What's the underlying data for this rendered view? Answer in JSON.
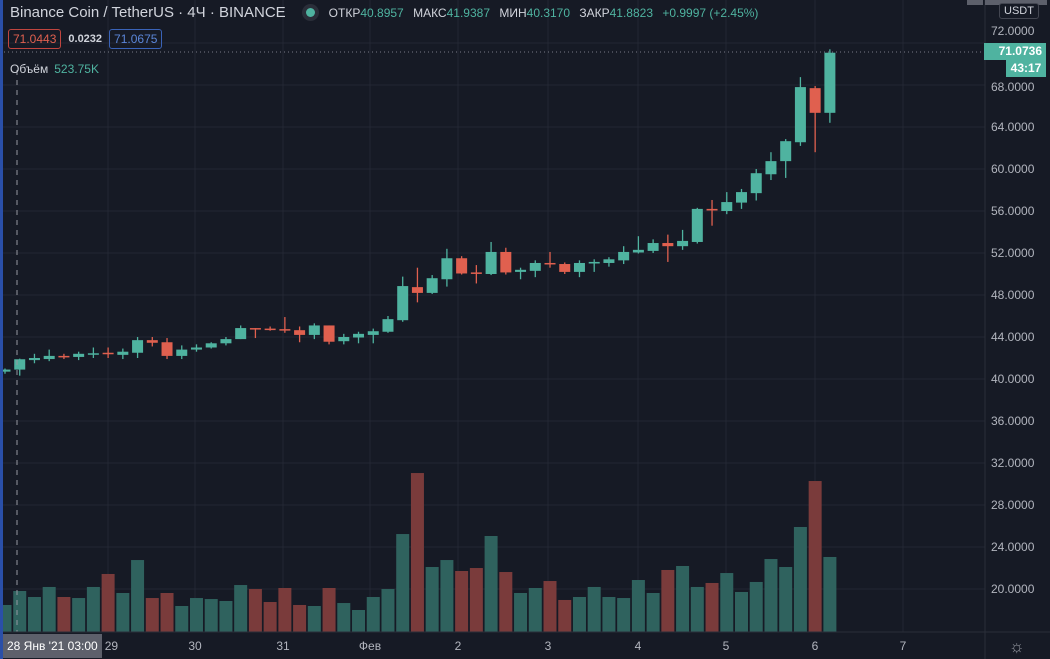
{
  "header": {
    "symbol": "Binance Coin / TetherUS · 4Ч · BINANCE",
    "open_label": "ОТКР",
    "open": "40.8957",
    "high_label": "МАКС",
    "high": "41.9387",
    "low_label": "МИН",
    "low": "40.3170",
    "close_label": "ЗАКР",
    "close": "41.8823",
    "change": "+0.9997 (+2.45%)",
    "bid": "71.0443",
    "spread": "0.0232",
    "ask": "71.0675",
    "volume_label": "Объём",
    "volume": "523.75K"
  },
  "price_axis": {
    "currency": "USDT",
    "last_price": "71.0736",
    "countdown": "43:17",
    "ticks": [
      "72.0000",
      "68.0000",
      "64.0000",
      "60.0000",
      "56.0000",
      "52.0000",
      "48.0000",
      "44.0000",
      "40.0000",
      "36.0000",
      "32.0000",
      "28.0000",
      "24.0000",
      "20.0000"
    ]
  },
  "time_axis": {
    "crosshair_label": "28 Янв '21   03:00",
    "ticks": [
      "29",
      "30",
      "31",
      "Фев",
      "2",
      "3",
      "4",
      "5",
      "6",
      "7"
    ]
  },
  "icons": {
    "status": "market-open-dot-icon",
    "settings": "gear-icon"
  },
  "colors": {
    "up": "#4fb3a0",
    "down": "#e0604f",
    "vol_up": "#2f625e",
    "vol_down": "#7a3b3b",
    "background": "#161a25"
  },
  "chart_data": {
    "type": "candlestick",
    "interval": "4Ч",
    "ylim": [
      18,
      74
    ],
    "grid": true,
    "volume_unit": "K",
    "candles": [
      {
        "o": 40.7,
        "h": 41.0,
        "l": 40.5,
        "c": 40.9,
        "v": 345
      },
      {
        "o": 40.8957,
        "h": 41.9387,
        "l": 40.317,
        "c": 41.8823,
        "v": 523.75
      },
      {
        "o": 41.8,
        "h": 42.4,
        "l": 41.5,
        "c": 42.0,
        "v": 447
      },
      {
        "o": 41.9,
        "h": 42.8,
        "l": 41.7,
        "c": 42.2,
        "v": 575
      },
      {
        "o": 42.2,
        "h": 42.4,
        "l": 41.9,
        "c": 42.1,
        "v": 447
      },
      {
        "o": 42.1,
        "h": 42.6,
        "l": 41.8,
        "c": 42.4,
        "v": 434
      },
      {
        "o": 42.35,
        "h": 43.0,
        "l": 42.0,
        "c": 42.45,
        "v": 575
      },
      {
        "o": 42.5,
        "h": 43.0,
        "l": 42.0,
        "c": 42.4,
        "v": 741
      },
      {
        "o": 42.3,
        "h": 42.9,
        "l": 41.9,
        "c": 42.6,
        "v": 498
      },
      {
        "o": 42.5,
        "h": 44.0,
        "l": 42.0,
        "c": 43.7,
        "v": 919
      },
      {
        "o": 43.7,
        "h": 44.0,
        "l": 43.1,
        "c": 43.45,
        "v": 434
      },
      {
        "o": 43.5,
        "h": 43.9,
        "l": 41.9,
        "c": 42.2,
        "v": 498
      },
      {
        "o": 42.2,
        "h": 43.2,
        "l": 41.9,
        "c": 42.8,
        "v": 332
      },
      {
        "o": 42.8,
        "h": 43.3,
        "l": 42.6,
        "c": 43.0,
        "v": 434
      },
      {
        "o": 43.0,
        "h": 43.5,
        "l": 42.9,
        "c": 43.4,
        "v": 421
      },
      {
        "o": 43.4,
        "h": 44.0,
        "l": 43.2,
        "c": 43.8,
        "v": 396
      },
      {
        "o": 43.8,
        "h": 45.1,
        "l": 43.8,
        "c": 44.85,
        "v": 600
      },
      {
        "o": 44.85,
        "h": 44.85,
        "l": 43.9,
        "c": 44.75,
        "v": 549
      },
      {
        "o": 44.8,
        "h": 45.0,
        "l": 44.6,
        "c": 44.75,
        "v": 383
      },
      {
        "o": 44.75,
        "h": 45.9,
        "l": 44.4,
        "c": 44.65,
        "v": 562
      },
      {
        "o": 44.65,
        "h": 45.0,
        "l": 43.5,
        "c": 44.2,
        "v": 345
      },
      {
        "o": 44.2,
        "h": 45.3,
        "l": 43.8,
        "c": 45.1,
        "v": 332
      },
      {
        "o": 45.1,
        "h": 45.1,
        "l": 43.3,
        "c": 43.55,
        "v": 562
      },
      {
        "o": 43.6,
        "h": 44.3,
        "l": 43.3,
        "c": 44.0,
        "v": 370
      },
      {
        "o": 43.95,
        "h": 44.5,
        "l": 43.4,
        "c": 44.3,
        "v": 281
      },
      {
        "o": 44.2,
        "h": 44.8,
        "l": 43.4,
        "c": 44.55,
        "v": 447
      },
      {
        "o": 44.5,
        "h": 46.0,
        "l": 44.4,
        "c": 45.7,
        "v": 549
      },
      {
        "o": 45.6,
        "h": 49.75,
        "l": 45.45,
        "c": 48.85,
        "v": 1251
      },
      {
        "o": 48.75,
        "h": 50.6,
        "l": 47.3,
        "c": 48.2,
        "v": 2030
      },
      {
        "o": 48.2,
        "h": 49.9,
        "l": 48.1,
        "c": 49.6,
        "v": 830
      },
      {
        "o": 49.5,
        "h": 52.4,
        "l": 48.8,
        "c": 51.5,
        "v": 919
      },
      {
        "o": 51.5,
        "h": 51.7,
        "l": 49.95,
        "c": 50.05,
        "v": 779
      },
      {
        "o": 50.15,
        "h": 50.85,
        "l": 49.1,
        "c": 50.05,
        "v": 817
      },
      {
        "o": 50.0,
        "h": 53.05,
        "l": 49.9,
        "c": 52.1,
        "v": 1226
      },
      {
        "o": 52.1,
        "h": 52.5,
        "l": 49.95,
        "c": 50.15,
        "v": 766
      },
      {
        "o": 50.2,
        "h": 50.6,
        "l": 49.5,
        "c": 50.4,
        "v": 498
      },
      {
        "o": 50.3,
        "h": 51.3,
        "l": 49.7,
        "c": 51.05,
        "v": 562
      },
      {
        "o": 51.05,
        "h": 52.1,
        "l": 50.6,
        "c": 50.95,
        "v": 651
      },
      {
        "o": 50.95,
        "h": 51.1,
        "l": 50.0,
        "c": 50.2,
        "v": 409
      },
      {
        "o": 50.2,
        "h": 51.3,
        "l": 49.7,
        "c": 51.05,
        "v": 447
      },
      {
        "o": 51.0,
        "h": 51.4,
        "l": 50.2,
        "c": 51.15,
        "v": 575
      },
      {
        "o": 51.05,
        "h": 51.6,
        "l": 50.7,
        "c": 51.4,
        "v": 447
      },
      {
        "o": 51.3,
        "h": 52.65,
        "l": 50.95,
        "c": 52.1,
        "v": 434
      },
      {
        "o": 52.05,
        "h": 53.6,
        "l": 51.95,
        "c": 52.3,
        "v": 664
      },
      {
        "o": 52.2,
        "h": 53.3,
        "l": 52.0,
        "c": 52.95,
        "v": 498
      },
      {
        "o": 52.95,
        "h": 53.75,
        "l": 51.15,
        "c": 52.65,
        "v": 792
      },
      {
        "o": 52.65,
        "h": 54.2,
        "l": 52.3,
        "c": 53.15,
        "v": 843
      },
      {
        "o": 53.05,
        "h": 56.3,
        "l": 52.9,
        "c": 56.2,
        "v": 575
      },
      {
        "o": 56.2,
        "h": 57.05,
        "l": 54.6,
        "c": 56.05,
        "v": 626
      },
      {
        "o": 56.0,
        "h": 57.8,
        "l": 55.7,
        "c": 56.85,
        "v": 753
      },
      {
        "o": 56.8,
        "h": 58.1,
        "l": 56.2,
        "c": 57.8,
        "v": 511
      },
      {
        "o": 57.7,
        "h": 60.0,
        "l": 57.0,
        "c": 59.6,
        "v": 639
      },
      {
        "o": 59.5,
        "h": 61.6,
        "l": 58.95,
        "c": 60.75,
        "v": 932
      },
      {
        "o": 60.75,
        "h": 62.85,
        "l": 59.15,
        "c": 62.65,
        "v": 830
      },
      {
        "o": 62.55,
        "h": 68.75,
        "l": 62.2,
        "c": 67.8,
        "v": 1341
      },
      {
        "o": 67.7,
        "h": 67.9,
        "l": 61.6,
        "c": 65.35,
        "v": 1928
      },
      {
        "o": 65.35,
        "h": 71.4,
        "l": 64.4,
        "c": 71.0736,
        "v": 958
      }
    ]
  }
}
